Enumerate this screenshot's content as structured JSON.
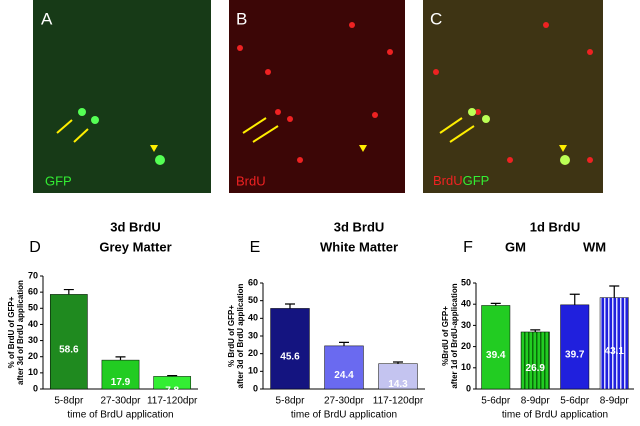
{
  "images": [
    {
      "letter": "A",
      "caption": "GFP"
    },
    {
      "letter": "B",
      "caption": "BrdU"
    },
    {
      "letter": "C",
      "caption_parts": [
        "BrdU",
        "GFP"
      ]
    }
  ],
  "chart_data": [
    {
      "type": "bar",
      "panel": "D",
      "title": "3d BrdU",
      "subtitle": "Grey Matter",
      "ylabel": [
        "% of BrdU of GFP+",
        "after 3d of BrdU application"
      ],
      "xlabel": "time of BrdU application",
      "categories": [
        "5-8dpr",
        "27-30dpr",
        "117-120dpr"
      ],
      "values": [
        58.6,
        17.9,
        7.8
      ],
      "errors": [
        3,
        2,
        0.5
      ],
      "colors": [
        "#1f8a1f",
        "#22cc22",
        "#33ee33"
      ],
      "hatch": [
        false,
        false,
        false
      ],
      "ylim": [
        0,
        70
      ],
      "yticks": [
        0,
        10,
        20,
        30,
        40,
        50,
        60,
        70
      ]
    },
    {
      "type": "bar",
      "panel": "E",
      "title": "3d BrdU",
      "subtitle": "White Matter",
      "ylabel": [
        "% BrdU of GFP+",
        "after 3d of BrdU application"
      ],
      "xlabel": "time of BrdU application",
      "categories": [
        "5-8dpr",
        "27-30dpr",
        "117-120dpr"
      ],
      "values": [
        45.6,
        24.4,
        14.3
      ],
      "errors": [
        2.5,
        2,
        1
      ],
      "colors": [
        "#141480",
        "#6a6af0",
        "#c4c4f0"
      ],
      "hatch": [
        false,
        false,
        false
      ],
      "ylim": [
        0,
        60
      ],
      "yticks": [
        0,
        10,
        20,
        30,
        40,
        50,
        60
      ]
    },
    {
      "type": "bar",
      "panel": "F",
      "title": "1d BrdU",
      "group_labels": [
        "GM",
        "WM"
      ],
      "ylabel": [
        "%BrdU of GFP+",
        "after 1d of BrdU-application"
      ],
      "xlabel": "time of BrdU application",
      "categories": [
        "5-6dpr",
        "8-9dpr",
        "5-6dpr",
        "8-9dpr"
      ],
      "values": [
        39.4,
        26.9,
        39.7,
        43.1
      ],
      "errors": [
        1,
        1,
        5,
        5.5
      ],
      "colors": [
        "#22cc22",
        "#22cc22",
        "#2020dd",
        "#2020dd"
      ],
      "hatch": [
        false,
        true,
        false,
        true
      ],
      "ylim": [
        0,
        50
      ],
      "yticks": [
        0,
        10,
        20,
        30,
        40,
        50
      ]
    }
  ]
}
